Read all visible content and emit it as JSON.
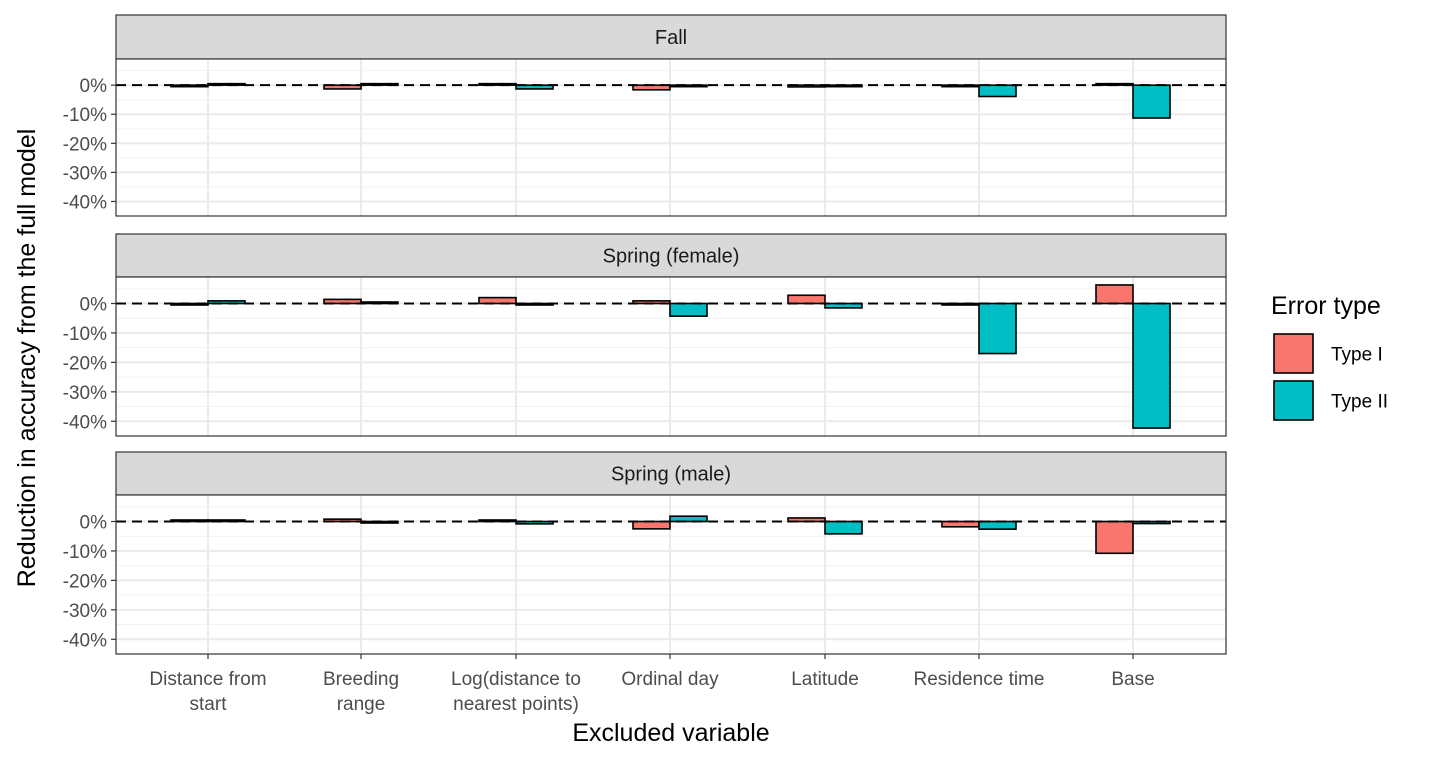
{
  "chart_data": {
    "type": "bar",
    "xlabel": "Excluded variable",
    "ylabel": "Reduction in accuracy from the full model",
    "legend_title": "Error type",
    "legend_position": "right",
    "grid": true,
    "ylim": [
      -45,
      9
    ],
    "yticks": [
      0,
      -10,
      -20,
      -30,
      -40
    ],
    "ytick_labels": [
      "0%",
      "-10%",
      "-20%",
      "-30%",
      "-40%"
    ],
    "reference_line": 0,
    "categories": [
      [
        "Distance from",
        "start"
      ],
      [
        "Breeding",
        "range"
      ],
      [
        "Log(distance to",
        "nearest points)"
      ],
      [
        "Ordinal day"
      ],
      [
        "Latitude"
      ],
      [
        "Residence time"
      ],
      [
        "Base"
      ]
    ],
    "series_meta": [
      {
        "name": "Type I",
        "color": "#F8766D"
      },
      {
        "name": "Type II",
        "color": "#00BFC4"
      }
    ],
    "panels": [
      {
        "title": "Fall",
        "series": [
          {
            "name": "Type I",
            "values": [
              -0.3,
              -1.3,
              0.2,
              -1.6,
              -0.6,
              -0.5,
              0.4
            ]
          },
          {
            "name": "Type II",
            "values": [
              0.5,
              0.2,
              -1.3,
              -0.5,
              -0.4,
              -3.9,
              -11.3
            ]
          }
        ]
      },
      {
        "title": "Spring (female)",
        "series": [
          {
            "name": "Type I",
            "values": [
              -0.5,
              1.4,
              2.0,
              0.9,
              2.8,
              -0.3,
              6.3
            ]
          },
          {
            "name": "Type II",
            "values": [
              0.9,
              0.5,
              -0.2,
              -4.3,
              -1.5,
              -17.0,
              -42.3
            ]
          }
        ]
      },
      {
        "title": "Spring (male)",
        "series": [
          {
            "name": "Type I",
            "values": [
              0.4,
              0.8,
              0.2,
              -2.5,
              1.2,
              -1.8,
              -10.8
            ]
          },
          {
            "name": "Type II",
            "values": [
              0.2,
              -0.3,
              -0.8,
              1.8,
              -4.2,
              -2.6,
              -0.7
            ]
          }
        ]
      }
    ]
  }
}
